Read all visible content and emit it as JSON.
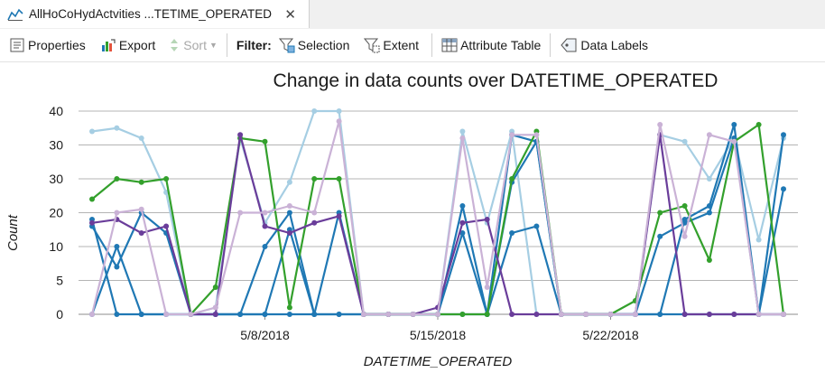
{
  "tab": {
    "title": "AllHoCoHydActvities ...TETIME_OPERATED",
    "close": "✕"
  },
  "toolbar": {
    "properties": "Properties",
    "export": "Export",
    "sort": "Sort",
    "filter_label": "Filter:",
    "selection": "Selection",
    "extent": "Extent",
    "attribute_table": "Attribute Table",
    "data_labels": "Data Labels"
  },
  "chart_data": {
    "type": "line",
    "title": "Change in data counts over DATETIME_OPERATED",
    "xlabel": "DATETIME_OPERATED",
    "ylabel": "Count",
    "ylim": [
      0,
      40
    ],
    "yticks": [
      "0",
      "5",
      "10",
      "20",
      "30",
      "30",
      "40"
    ],
    "x_tick_labels": [
      {
        "label": "5/8/2018",
        "day": 8
      },
      {
        "label": "5/15/2018",
        "day": 15
      },
      {
        "label": "5/22/2018",
        "day": 22
      }
    ],
    "x": [
      1,
      2,
      3,
      4,
      5,
      6,
      7,
      8,
      9,
      10,
      11,
      12,
      13,
      14,
      15,
      16,
      17,
      18,
      19,
      20,
      21,
      22,
      23,
      24,
      25,
      26,
      27,
      28,
      29
    ],
    "grid": true,
    "series": [
      {
        "color": "#a6cee3",
        "values": [
          34,
          35,
          32,
          26,
          0,
          1,
          32,
          17,
          29,
          40,
          40,
          0,
          0,
          0,
          0,
          34,
          17,
          34,
          0,
          0,
          0,
          0,
          0,
          33,
          31,
          30,
          32,
          12,
          32
        ]
      },
      {
        "color": "#1f78b4",
        "values": [
          18,
          0,
          0,
          0,
          0,
          0,
          0,
          10,
          20,
          0,
          0,
          0,
          0,
          0,
          0,
          22,
          0,
          29,
          31,
          0,
          0,
          0,
          0,
          0,
          18,
          22,
          36,
          0,
          33
        ]
      },
      {
        "color": "#1f78b4",
        "values": [
          16,
          7,
          20,
          14,
          0,
          0,
          0,
          0,
          15,
          0,
          20,
          0,
          0,
          0,
          0,
          14,
          0,
          33,
          31,
          0,
          0,
          0,
          0,
          13,
          17,
          20,
          32,
          0,
          27
        ]
      },
      {
        "color": "#1f78b4",
        "values": [
          0,
          10,
          0,
          0,
          0,
          0,
          0,
          0,
          0,
          0,
          0,
          0,
          0,
          0,
          0,
          0,
          0,
          14,
          16,
          0,
          0,
          0,
          0,
          0,
          0,
          0,
          0,
          0,
          0
        ]
      },
      {
        "color": "#33a02c",
        "values": [
          24,
          30,
          29,
          30,
          0,
          4,
          32,
          31,
          1,
          30,
          30,
          0,
          0,
          0,
          0,
          0,
          0,
          30,
          34,
          0,
          0,
          0,
          2,
          20,
          22,
          8,
          31,
          36,
          0
        ]
      },
      {
        "color": "#6a3d9a",
        "values": [
          17,
          18,
          14,
          16,
          0,
          0,
          33,
          16,
          14,
          17,
          19,
          0,
          0,
          0,
          1,
          17,
          18,
          0,
          0,
          0,
          0,
          0,
          0,
          33,
          0,
          0,
          0,
          0,
          0
        ]
      },
      {
        "color": "#cab2d6",
        "values": [
          0,
          20,
          21,
          0,
          0,
          1,
          20,
          20,
          22,
          20,
          37,
          0,
          0,
          0,
          0,
          32,
          4,
          33,
          33,
          0,
          0,
          0,
          0,
          36,
          13,
          33,
          31,
          0,
          0
        ]
      }
    ]
  }
}
